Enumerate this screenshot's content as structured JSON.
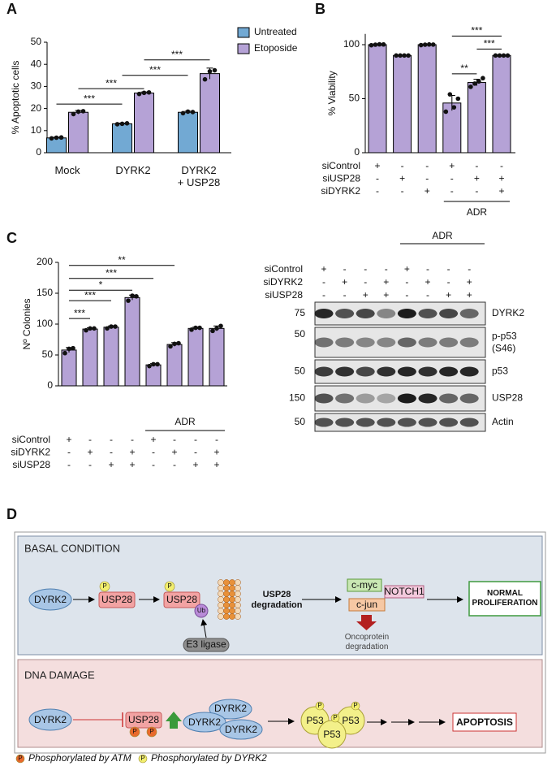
{
  "panel_labels": [
    "A",
    "B",
    "C",
    "D"
  ],
  "chart_data": [
    {
      "type": "bar",
      "y_label": "% Apoptotic cells",
      "categories": [
        "Mock",
        "DYRK2",
        "DYRK2\n+ USP28"
      ],
      "series": [
        {
          "name": "Untreated",
          "color": "#72a9d3",
          "values": [
            6.7,
            13.1,
            18.3
          ],
          "errors": [
            0.3,
            0.3,
            0.5
          ],
          "points": [
            [
              6.5,
              6.8,
              6.9
            ],
            [
              12.9,
              13.1,
              13.3
            ],
            [
              17.9,
              18.6,
              18.4
            ]
          ]
        },
        {
          "name": "Etoposide",
          "color": "#b5a2d6",
          "values": [
            18.3,
            27,
            35.8
          ],
          "errors": [
            0.8,
            0.5,
            2.5
          ],
          "points": [
            [
              17.5,
              18.6,
              18.8
            ],
            [
              26.6,
              27.1,
              27.3
            ],
            [
              33.2,
              36.8,
              37.3
            ]
          ]
        }
      ],
      "ylim": [
        0,
        50
      ],
      "yticks": [
        0,
        10,
        20,
        30,
        40,
        50
      ],
      "legend": "right",
      "significance": [
        {
          "label": "***",
          "from": [
            0,
            0
          ],
          "to": [
            1,
            0
          ],
          "y": 22
        },
        {
          "label": "***",
          "from": [
            0,
            1
          ],
          "to": [
            1,
            1
          ],
          "y": 29
        },
        {
          "label": "***",
          "from": [
            1,
            0
          ],
          "to": [
            2,
            0
          ],
          "y": 35
        },
        {
          "label": "***",
          "from": [
            1,
            1
          ],
          "to": [
            2,
            1
          ],
          "y": 42
        }
      ]
    },
    {
      "type": "bar",
      "y_label": "% Viability",
      "color": "#b5a2d6",
      "values": [
        100,
        90,
        100,
        46,
        65,
        90
      ],
      "errors": [
        0.3,
        0.2,
        0.3,
        7,
        3,
        0.3
      ],
      "points": [
        [
          99.5,
          100,
          100.3,
          100.2
        ],
        [
          90,
          90,
          90,
          90
        ],
        [
          99.6,
          100,
          100.2,
          100.1
        ],
        [
          38,
          54,
          42,
          50
        ],
        [
          61,
          64,
          66,
          69
        ],
        [
          90,
          90,
          90,
          90
        ]
      ],
      "ylim": [
        0,
        110
      ],
      "yticks": [
        0,
        50,
        100
      ],
      "significance": [
        {
          "label": "***",
          "from": 3,
          "to": 5,
          "y": 108
        },
        {
          "label": "***",
          "from": 4,
          "to": 5,
          "y": 96
        },
        {
          "label": "**",
          "from": 3,
          "to": 4,
          "y": 73
        }
      ],
      "conditions": [
        {
          "name": "siControl",
          "signs": [
            "+",
            "-",
            "-",
            "+",
            "-",
            "-"
          ]
        },
        {
          "name": "siUSP28",
          "signs": [
            "-",
            "+",
            "-",
            "-",
            "+",
            "+"
          ]
        },
        {
          "name": "siDYRK2",
          "signs": [
            "-",
            "-",
            "+",
            "-",
            "-",
            "+"
          ]
        }
      ],
      "treatment": {
        "label": "ADR",
        "from": 3,
        "to": 5
      }
    },
    {
      "type": "bar",
      "y_label": "Nº Colonies",
      "color": "#b5a2d6",
      "values": [
        58,
        92,
        95,
        143,
        34,
        67,
        93,
        93
      ],
      "errors": [
        4,
        2,
        2,
        4,
        2,
        3,
        2,
        4
      ],
      "points": [
        [
          53,
          60,
          61
        ],
        [
          90,
          93,
          93
        ],
        [
          93,
          96,
          96
        ],
        [
          138,
          146,
          145
        ],
        [
          32,
          35,
          35
        ],
        [
          64,
          68,
          69
        ],
        [
          91,
          94,
          94
        ],
        [
          89,
          93,
          97
        ]
      ],
      "ylim": [
        0,
        200
      ],
      "yticks": [
        0,
        50,
        100,
        150,
        200
      ],
      "significance": [
        {
          "label": "***",
          "from": 0,
          "to": 1,
          "y": 109
        },
        {
          "label": "***",
          "from": 0,
          "to": 2,
          "y": 138
        },
        {
          "label": "*",
          "from": 0,
          "to": 3,
          "y": 155
        },
        {
          "label": "***",
          "from": 0,
          "to": 4,
          "y": 174
        },
        {
          "label": "**",
          "from": 0,
          "to": 5,
          "y": 195
        }
      ],
      "conditions": [
        {
          "name": "siControl",
          "signs": [
            "+",
            "-",
            "-",
            "-",
            "+",
            "-",
            "-",
            "-"
          ]
        },
        {
          "name": "siDYRK2",
          "signs": [
            "-",
            "+",
            "-",
            "+",
            "-",
            "+",
            "-",
            "+"
          ]
        },
        {
          "name": "siUSP28",
          "signs": [
            "-",
            "-",
            "+",
            "+",
            "-",
            "-",
            "+",
            "+"
          ]
        }
      ],
      "treatment": {
        "label": "ADR",
        "from": 4,
        "to": 7
      }
    }
  ],
  "blot": {
    "treatment": "ADR",
    "conditions": [
      {
        "name": "siControl",
        "signs": [
          "+",
          "-",
          "-",
          "-",
          "+",
          "-",
          "-",
          "-"
        ]
      },
      {
        "name": "siDYRK2",
        "signs": [
          "-",
          "+",
          "-",
          "+",
          "-",
          "+",
          "-",
          "+"
        ]
      },
      {
        "name": "siUSP28",
        "signs": [
          "-",
          "-",
          "+",
          "+",
          "-",
          "-",
          "+",
          "+"
        ]
      }
    ],
    "rows": [
      {
        "marker": "75",
        "label": "DYRK2"
      },
      {
        "marker": "50",
        "label": "p-p53",
        "sublabel": "(S46)"
      },
      {
        "marker": "50",
        "label": "p53"
      },
      {
        "marker": "150",
        "label": "USP28"
      },
      {
        "marker": "50",
        "label": "Actin"
      }
    ]
  },
  "diagram": {
    "basal": {
      "title": "BASAL CONDITION",
      "kinase": "DYRK2",
      "usp28": "USP28",
      "ub": "Ub",
      "degradation": "USP28\ndegradation",
      "e3": "E3 ligase",
      "oncoproteins": [
        "c-myc",
        "NOTCH1",
        "c-jun"
      ],
      "onco_degradation": "Oncoprotein\ndegradation",
      "outcome": "NORMAL\nPROLIFERATION"
    },
    "damage": {
      "title": "DNA DAMAGE",
      "kinase": "DYRK2",
      "usp28": "USP28",
      "complex": [
        "DYRK2",
        "DYRK2",
        "DYRK2"
      ],
      "p53": [
        "P53",
        "P53",
        "P53"
      ],
      "outcome": "APOPTOSIS"
    },
    "phospho": "P",
    "legend": [
      {
        "label": "Phosphorylated by ATM",
        "color": "#e8692c"
      },
      {
        "label": "Phosphorylated by DYRK2",
        "color": "#f2ee6e"
      }
    ]
  }
}
